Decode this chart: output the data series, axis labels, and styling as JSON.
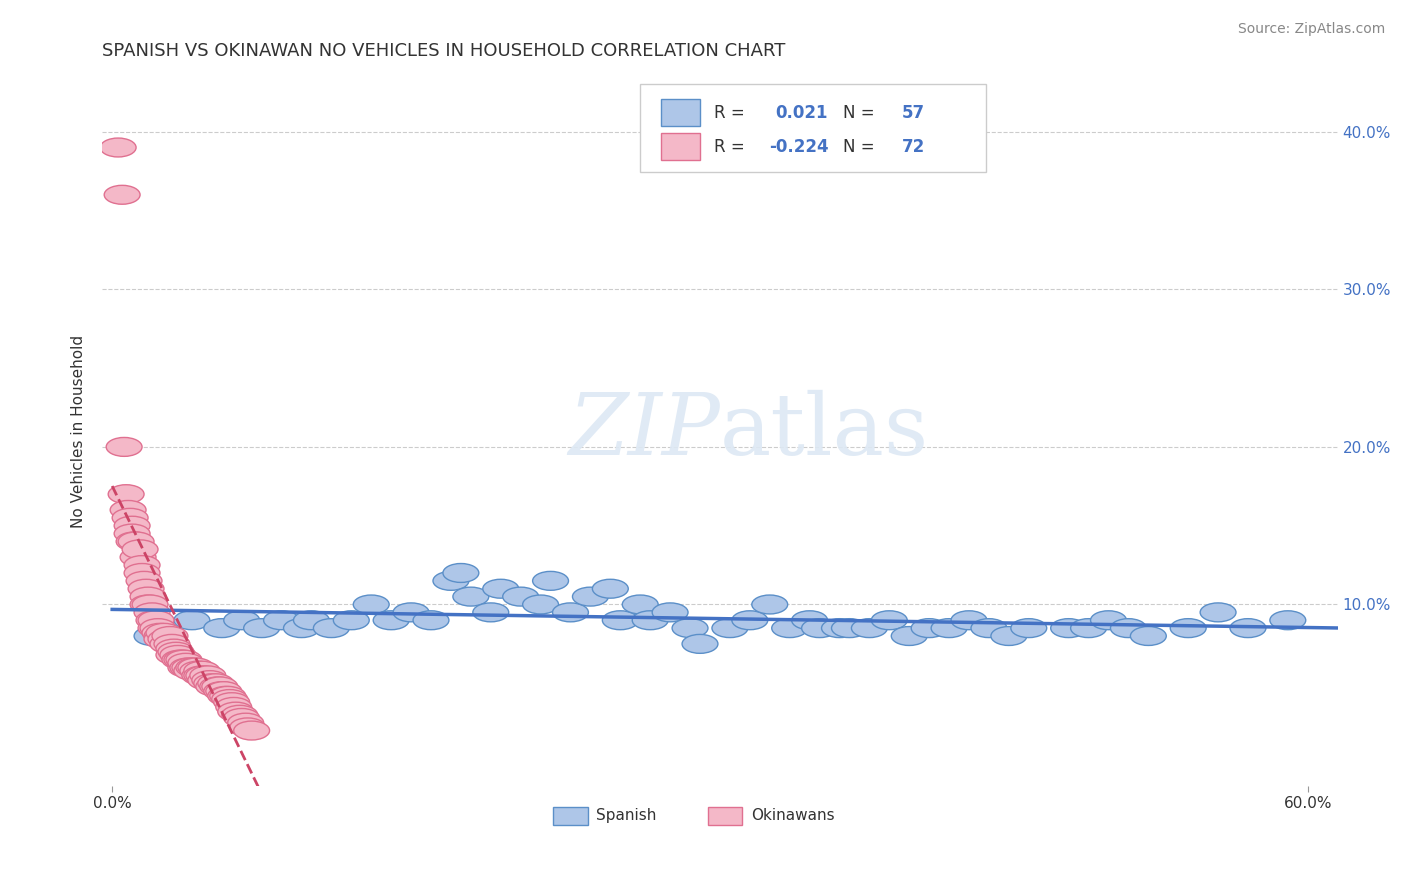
{
  "title": "SPANISH VS OKINAWAN NO VEHICLES IN HOUSEHOLD CORRELATION CHART",
  "source": "Source: ZipAtlas.com",
  "ylabel": "No Vehicles in Household",
  "xlim": [
    -0.005,
    0.615
  ],
  "ylim": [
    -0.015,
    0.435
  ],
  "spanish_color": "#aec6e8",
  "okinawan_color": "#f4b8c8",
  "spanish_edge": "#5b8fc8",
  "okinawan_edge": "#e07090",
  "trendline_spanish_color": "#4472c4",
  "trendline_okinawan_color": "#c0304050",
  "background_color": "#ffffff",
  "spanish_x": [
    0.02,
    0.04,
    0.055,
    0.065,
    0.075,
    0.085,
    0.095,
    0.1,
    0.11,
    0.12,
    0.13,
    0.14,
    0.15,
    0.16,
    0.17,
    0.175,
    0.18,
    0.19,
    0.195,
    0.205,
    0.215,
    0.22,
    0.23,
    0.24,
    0.25,
    0.255,
    0.265,
    0.27,
    0.28,
    0.29,
    0.295,
    0.31,
    0.32,
    0.33,
    0.34,
    0.35,
    0.355,
    0.365,
    0.37,
    0.38,
    0.39,
    0.4,
    0.41,
    0.42,
    0.43,
    0.44,
    0.45,
    0.46,
    0.48,
    0.49,
    0.5,
    0.51,
    0.52,
    0.54,
    0.555,
    0.57,
    0.59
  ],
  "spanish_y": [
    0.08,
    0.09,
    0.085,
    0.09,
    0.085,
    0.09,
    0.085,
    0.09,
    0.085,
    0.09,
    0.1,
    0.09,
    0.095,
    0.09,
    0.115,
    0.12,
    0.105,
    0.095,
    0.11,
    0.105,
    0.1,
    0.115,
    0.095,
    0.105,
    0.11,
    0.09,
    0.1,
    0.09,
    0.095,
    0.085,
    0.075,
    0.085,
    0.09,
    0.1,
    0.085,
    0.09,
    0.085,
    0.085,
    0.085,
    0.085,
    0.09,
    0.08,
    0.085,
    0.085,
    0.09,
    0.085,
    0.08,
    0.085,
    0.085,
    0.085,
    0.09,
    0.085,
    0.08,
    0.085,
    0.095,
    0.085,
    0.09
  ],
  "okinawan_x": [
    0.003,
    0.005,
    0.006,
    0.007,
    0.008,
    0.009,
    0.01,
    0.01,
    0.011,
    0.012,
    0.013,
    0.014,
    0.015,
    0.015,
    0.016,
    0.017,
    0.018,
    0.018,
    0.019,
    0.02,
    0.021,
    0.022,
    0.022,
    0.023,
    0.024,
    0.025,
    0.025,
    0.026,
    0.027,
    0.028,
    0.029,
    0.03,
    0.031,
    0.031,
    0.032,
    0.033,
    0.034,
    0.035,
    0.036,
    0.037,
    0.037,
    0.038,
    0.039,
    0.04,
    0.041,
    0.042,
    0.043,
    0.044,
    0.045,
    0.045,
    0.046,
    0.047,
    0.048,
    0.049,
    0.05,
    0.051,
    0.052,
    0.053,
    0.054,
    0.055,
    0.056,
    0.057,
    0.058,
    0.059,
    0.06,
    0.061,
    0.062,
    0.064,
    0.065,
    0.067,
    0.068,
    0.07
  ],
  "okinawan_y": [
    0.39,
    0.36,
    0.2,
    0.17,
    0.16,
    0.155,
    0.15,
    0.145,
    0.14,
    0.14,
    0.13,
    0.135,
    0.125,
    0.12,
    0.115,
    0.11,
    0.105,
    0.1,
    0.1,
    0.095,
    0.09,
    0.085,
    0.09,
    0.085,
    0.082,
    0.08,
    0.078,
    0.082,
    0.078,
    0.075,
    0.08,
    0.075,
    0.072,
    0.068,
    0.07,
    0.068,
    0.065,
    0.065,
    0.065,
    0.06,
    0.063,
    0.06,
    0.06,
    0.058,
    0.06,
    0.06,
    0.058,
    0.055,
    0.058,
    0.055,
    0.055,
    0.052,
    0.055,
    0.052,
    0.05,
    0.048,
    0.05,
    0.048,
    0.048,
    0.045,
    0.045,
    0.042,
    0.042,
    0.04,
    0.038,
    0.035,
    0.032,
    0.03,
    0.028,
    0.025,
    0.022,
    0.02
  ]
}
